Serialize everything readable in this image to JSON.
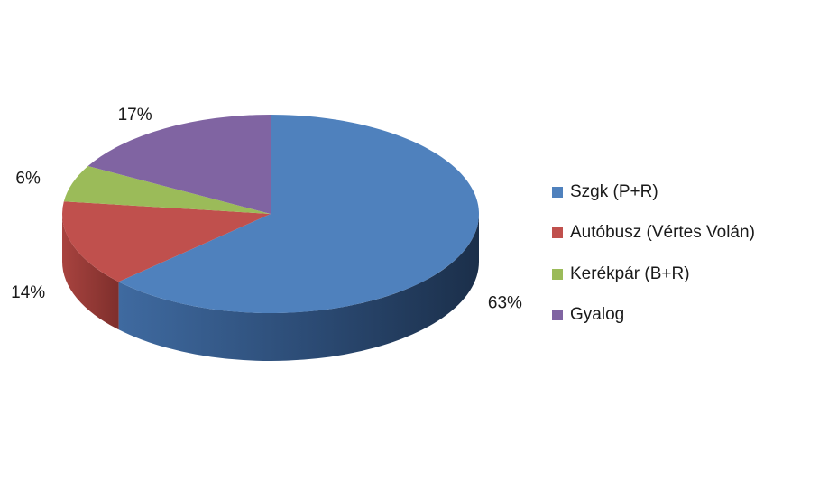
{
  "chart_data": {
    "type": "pie",
    "style": "3d",
    "categories": [
      "Szgk (P+R)",
      "Autóbusz (Vértes Volán)",
      "Kerékpár (B+R)",
      "Gyalog"
    ],
    "values": [
      63,
      14,
      6,
      17
    ],
    "data_labels": [
      "63%",
      "14%",
      "6%",
      "17%"
    ],
    "colors": [
      "#4F81BD",
      "#C0504D",
      "#9BBB59",
      "#8064A2"
    ],
    "legend_position": "right",
    "title": ""
  }
}
